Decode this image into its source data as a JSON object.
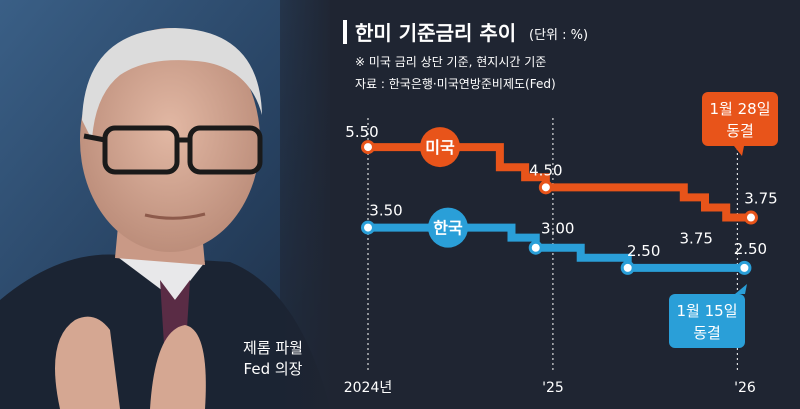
{
  "photo_caption": {
    "line1": "제롬 파월",
    "line2": "Fed 의장"
  },
  "chart_data": {
    "type": "line",
    "title": "한미 기준금리 추이",
    "unit": "(단위 : %)",
    "notes": [
      "※ 미국 금리 상단 기준, 현지시간 기준",
      "자료 : 한국은행·미국연방준비제도(Fed)"
    ],
    "x_tick_labels": [
      "2024년",
      "'25",
      "'26"
    ],
    "x_range": [
      "2024-01-01",
      "2026-02-01"
    ],
    "y_range": [
      2.0,
      5.8
    ],
    "colors": {
      "us": "#e8541a",
      "kr": "#2a9fd8",
      "background": "#1f2532",
      "text": "#ffffff"
    },
    "series": [
      {
        "name": "미국",
        "steps": [
          {
            "date": "2024-01-01",
            "value": 5.5
          },
          {
            "date": "2024-09-18",
            "value": 5.0
          },
          {
            "date": "2024-11-07",
            "value": 4.75
          },
          {
            "date": "2024-12-18",
            "value": 4.5
          },
          {
            "date": "2025-09-17",
            "value": 4.25
          },
          {
            "date": "2025-10-29",
            "value": 4.0
          },
          {
            "date": "2025-12-10",
            "value": 3.75
          },
          {
            "date": "2026-01-28",
            "value": 3.75
          }
        ]
      },
      {
        "name": "한국",
        "steps": [
          {
            "date": "2024-01-01",
            "value": 3.5
          },
          {
            "date": "2024-10-11",
            "value": 3.25
          },
          {
            "date": "2024-11-28",
            "value": 3.0
          },
          {
            "date": "2025-02-25",
            "value": 2.75
          },
          {
            "date": "2025-05-29",
            "value": 2.5
          },
          {
            "date": "2026-01-15",
            "value": 2.5
          }
        ]
      }
    ],
    "data_labels": [
      {
        "series": "미국",
        "date": "2024-01-01",
        "value": 5.5,
        "text": "5.50"
      },
      {
        "series": "미국",
        "date": "2024-12-18",
        "value": 4.5,
        "text": "4.50"
      },
      {
        "series": "미국",
        "date": "2025-12-10",
        "value": 3.75,
        "text": "3.75"
      },
      {
        "series": "미국",
        "date": "2026-01-28",
        "value": 3.75,
        "text": "3.75"
      },
      {
        "series": "한국",
        "date": "2024-01-01",
        "value": 3.5,
        "text": "3.50"
      },
      {
        "series": "한국",
        "date": "2024-11-28",
        "value": 3.0,
        "text": "3.00"
      },
      {
        "series": "한국",
        "date": "2025-05-29",
        "value": 2.5,
        "text": "2.50"
      },
      {
        "series": "한국",
        "date": "2026-01-15",
        "value": 2.5,
        "text": "2.50"
      }
    ],
    "callouts": [
      {
        "series": "미국",
        "lines": [
          "1월 28일",
          "동결"
        ]
      },
      {
        "series": "한국",
        "lines": [
          "1월 15일",
          "동결"
        ]
      }
    ]
  }
}
